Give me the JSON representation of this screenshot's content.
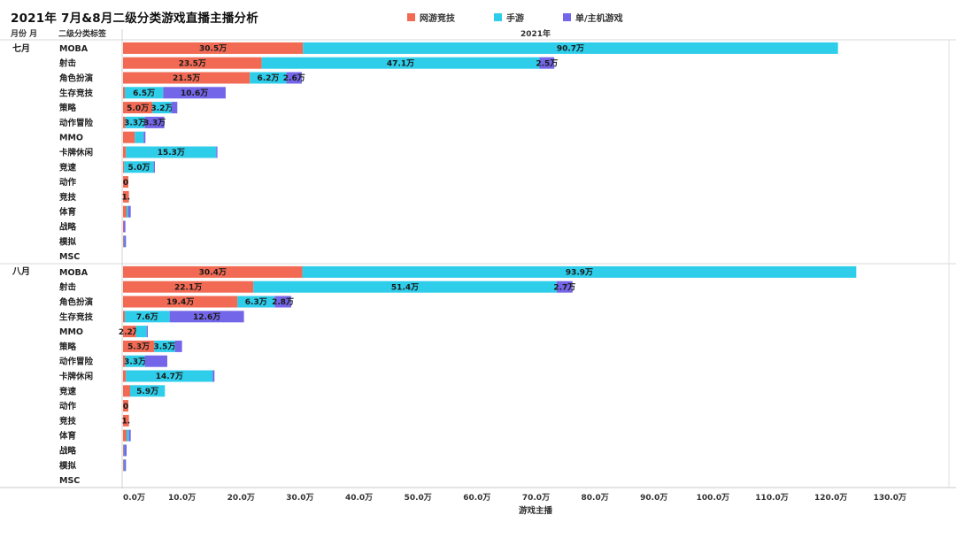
{
  "title": "2021年 7月&8月二级分类游戏直播主播分析",
  "header": {
    "month_col": "月份 月",
    "category_col": "二级分类标签",
    "year": "2021年"
  },
  "legend": [
    {
      "name": "网游竞技",
      "color": "#F26A54"
    },
    {
      "name": "手游",
      "color": "#2ECDEA"
    },
    {
      "name": "单/主机游戏",
      "color": "#7466E8"
    }
  ],
  "chart_data": {
    "type": "bar",
    "orientation": "horizontal",
    "stacked": true,
    "xlabel": "游戏主播",
    "xlim": [
      0,
      130
    ],
    "xticks": [
      "0.0万",
      "10.0万",
      "20.0万",
      "30.0万",
      "40.0万",
      "50.0万",
      "60.0万",
      "70.0万",
      "80.0万",
      "90.0万",
      "100.0万",
      "110.0万",
      "120.0万",
      "130.0万"
    ],
    "series_names": [
      "网游竞技",
      "手游",
      "单/主机游戏"
    ],
    "groups": [
      {
        "label": "七月",
        "rows": [
          {
            "cat": "MOBA",
            "values": [
              30.5,
              90.7,
              0
            ],
            "labels": [
              "30.5万",
              "90.7万",
              ""
            ]
          },
          {
            "cat": "射击",
            "values": [
              23.5,
              47.1,
              2.5
            ],
            "labels": [
              "23.5万",
              "47.1万",
              "2.5万"
            ]
          },
          {
            "cat": "角色扮演",
            "values": [
              21.5,
              6.2,
              2.6
            ],
            "labels": [
              "21.5万",
              "6.2万",
              "2.6万"
            ]
          },
          {
            "cat": "生存竞技",
            "values": [
              0.3,
              6.5,
              10.6
            ],
            "labels": [
              "",
              "6.5万",
              "10.6万"
            ]
          },
          {
            "cat": "策略",
            "values": [
              5.0,
              3.2,
              1.0
            ],
            "labels": [
              "5.0万",
              "3.2万",
              ""
            ]
          },
          {
            "cat": "动作冒险",
            "values": [
              0.4,
              3.3,
              3.3
            ],
            "labels": [
              "",
              "3.3万",
              "3.3万"
            ]
          },
          {
            "cat": "MMO",
            "values": [
              2.0,
              1.5,
              0.3
            ],
            "labels": [
              "",
              "",
              ""
            ]
          },
          {
            "cat": "卡牌休闲",
            "values": [
              0.5,
              15.3,
              0.2
            ],
            "labels": [
              "",
              "15.3万",
              ""
            ]
          },
          {
            "cat": "竞速",
            "values": [
              0.2,
              5.0,
              0.2
            ],
            "labels": [
              "",
              "5.0万",
              ""
            ]
          },
          {
            "cat": "动作",
            "values": [
              0.9,
              0,
              0
            ],
            "labels": [
              "0",
              "",
              ""
            ]
          },
          {
            "cat": "竞技",
            "values": [
              1.0,
              0,
              0
            ],
            "labels": [
              "1.",
              "",
              ""
            ]
          },
          {
            "cat": "体育",
            "values": [
              0.6,
              0.3,
              0.4
            ],
            "labels": [
              "",
              "",
              ""
            ]
          },
          {
            "cat": "战略",
            "values": [
              0.1,
              0,
              0.3
            ],
            "labels": [
              "",
              "",
              ""
            ]
          },
          {
            "cat": "模拟",
            "values": [
              0.1,
              0.1,
              0.3
            ],
            "labels": [
              "",
              "",
              ""
            ]
          },
          {
            "cat": "MSC",
            "values": [
              0,
              0,
              0
            ],
            "labels": [
              "",
              "",
              ""
            ]
          }
        ]
      },
      {
        "label": "八月",
        "rows": [
          {
            "cat": "MOBA",
            "values": [
              30.4,
              93.9,
              0
            ],
            "labels": [
              "30.4万",
              "93.9万",
              ""
            ]
          },
          {
            "cat": "射击",
            "values": [
              22.1,
              51.4,
              2.7
            ],
            "labels": [
              "22.1万",
              "51.4万",
              "2.7万"
            ]
          },
          {
            "cat": "角色扮演",
            "values": [
              19.4,
              6.3,
              2.8
            ],
            "labels": [
              "19.4万",
              "6.3万",
              "2.8万"
            ]
          },
          {
            "cat": "生存竞技",
            "values": [
              0.3,
              7.6,
              12.6
            ],
            "labels": [
              "",
              "7.6万",
              "12.6万"
            ]
          },
          {
            "cat": "MMO",
            "values": [
              2.2,
              1.8,
              0.2
            ],
            "labels": [
              "2.2万",
              "",
              ""
            ]
          },
          {
            "cat": "策略",
            "values": [
              5.3,
              3.5,
              1.2
            ],
            "labels": [
              "5.3万",
              "3.5万",
              ""
            ]
          },
          {
            "cat": "动作冒险",
            "values": [
              0.4,
              3.3,
              3.8
            ],
            "labels": [
              "",
              "3.3万",
              ""
            ]
          },
          {
            "cat": "卡牌休闲",
            "values": [
              0.5,
              14.7,
              0.3
            ],
            "labels": [
              "",
              "14.7万",
              ""
            ]
          },
          {
            "cat": "竞速",
            "values": [
              1.2,
              5.9,
              0
            ],
            "labels": [
              "",
              "5.9万",
              ""
            ]
          },
          {
            "cat": "动作",
            "values": [
              0.9,
              0,
              0
            ],
            "labels": [
              "0",
              "",
              ""
            ]
          },
          {
            "cat": "竞技",
            "values": [
              1.0,
              0,
              0
            ],
            "labels": [
              "1.",
              "",
              ""
            ]
          },
          {
            "cat": "体育",
            "values": [
              0.6,
              0.4,
              0.3
            ],
            "labels": [
              "",
              "",
              ""
            ]
          },
          {
            "cat": "战略",
            "values": [
              0.1,
              0.1,
              0.4
            ],
            "labels": [
              "",
              "",
              ""
            ]
          },
          {
            "cat": "模拟",
            "values": [
              0.1,
              0.1,
              0.3
            ],
            "labels": [
              "",
              "",
              ""
            ]
          },
          {
            "cat": "MSC",
            "values": [
              0,
              0,
              0
            ],
            "labels": [
              "",
              "",
              ""
            ]
          }
        ]
      }
    ]
  }
}
